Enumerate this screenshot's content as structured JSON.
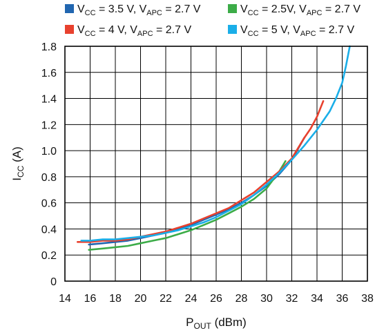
{
  "chart_data": {
    "type": "line",
    "title": "",
    "xlabel": "P",
    "xlabel_sub": "OUT",
    "xlabel_tail": " (dBm)",
    "ylabel": "I",
    "ylabel_sub": "CC",
    "ylabel_tail": " (A)",
    "xlim": [
      14,
      38
    ],
    "ylim": [
      0,
      1.8
    ],
    "xticks": [
      "14",
      "16",
      "18",
      "20",
      "22",
      "24",
      "26",
      "28",
      "30",
      "32",
      "34",
      "36",
      "38"
    ],
    "yticks": [
      "0",
      "0.2",
      "0.4",
      "0.6",
      "0.8",
      "1.0",
      "1.2",
      "1.4",
      "1.6",
      "1.8"
    ],
    "grid": true,
    "legend_position": "top",
    "series": [
      {
        "name": "VCC = 3.5 V, VAPC = 2.7 V",
        "vcc_label": "3.5 V",
        "apc_label": "2.7 V",
        "vcc_sep": " = ",
        "color": "#2166b0",
        "x": [
          15.9,
          17,
          18,
          19,
          20,
          21,
          22,
          23,
          24,
          25,
          26,
          27,
          28,
          29,
          30,
          31,
          32,
          33
        ],
        "y": [
          0.28,
          0.29,
          0.3,
          0.31,
          0.33,
          0.35,
          0.37,
          0.4,
          0.43,
          0.47,
          0.51,
          0.55,
          0.6,
          0.66,
          0.73,
          0.82,
          0.93,
          1.1
        ]
      },
      {
        "name": "VCC = 2.5V, VAPC = 2.7 V",
        "vcc_label": "2.5V",
        "apc_label": "2.7 V",
        "vcc_sep": " = ",
        "color": "#3cac48",
        "x": [
          15.9,
          17,
          18,
          19,
          20,
          21,
          22,
          23,
          24,
          25,
          26,
          27,
          28,
          29,
          30,
          31,
          31.5
        ],
        "y": [
          0.24,
          0.25,
          0.26,
          0.27,
          0.29,
          0.31,
          0.33,
          0.36,
          0.39,
          0.43,
          0.47,
          0.52,
          0.57,
          0.63,
          0.71,
          0.84,
          0.92
        ]
      },
      {
        "name": "VCC = 4 V, VAPC = 2.7 V",
        "vcc_label": "4 V",
        "apc_label": "2.7 V",
        "vcc_sep": " = ",
        "color": "#e8412e",
        "x": [
          15.0,
          16,
          17,
          18,
          19,
          20,
          21,
          22,
          23,
          24,
          25,
          26,
          27,
          28,
          29,
          30,
          31,
          32,
          33,
          33.5,
          34,
          34.5
        ],
        "y": [
          0.3,
          0.3,
          0.31,
          0.31,
          0.32,
          0.34,
          0.36,
          0.38,
          0.41,
          0.44,
          0.48,
          0.52,
          0.56,
          0.62,
          0.68,
          0.76,
          0.84,
          0.94,
          1.1,
          1.17,
          1.26,
          1.38
        ]
      },
      {
        "name": "VCC = 5 V, VAPC = 2.7 V",
        "vcc_label": "5 V",
        "apc_label": "2.7 V",
        "vcc_sep": " = ",
        "color": "#1aaee8",
        "x": [
          15.3,
          16,
          17,
          18,
          19,
          20,
          21,
          22,
          23,
          24,
          25,
          26,
          27,
          28,
          29,
          30,
          31,
          32,
          33,
          34,
          35,
          35.5,
          36,
          36.3,
          36.6
        ],
        "y": [
          0.31,
          0.31,
          0.32,
          0.32,
          0.33,
          0.34,
          0.35,
          0.37,
          0.39,
          0.42,
          0.45,
          0.49,
          0.54,
          0.59,
          0.66,
          0.74,
          0.83,
          0.93,
          1.04,
          1.16,
          1.3,
          1.4,
          1.52,
          1.65,
          1.8
        ]
      }
    ]
  }
}
